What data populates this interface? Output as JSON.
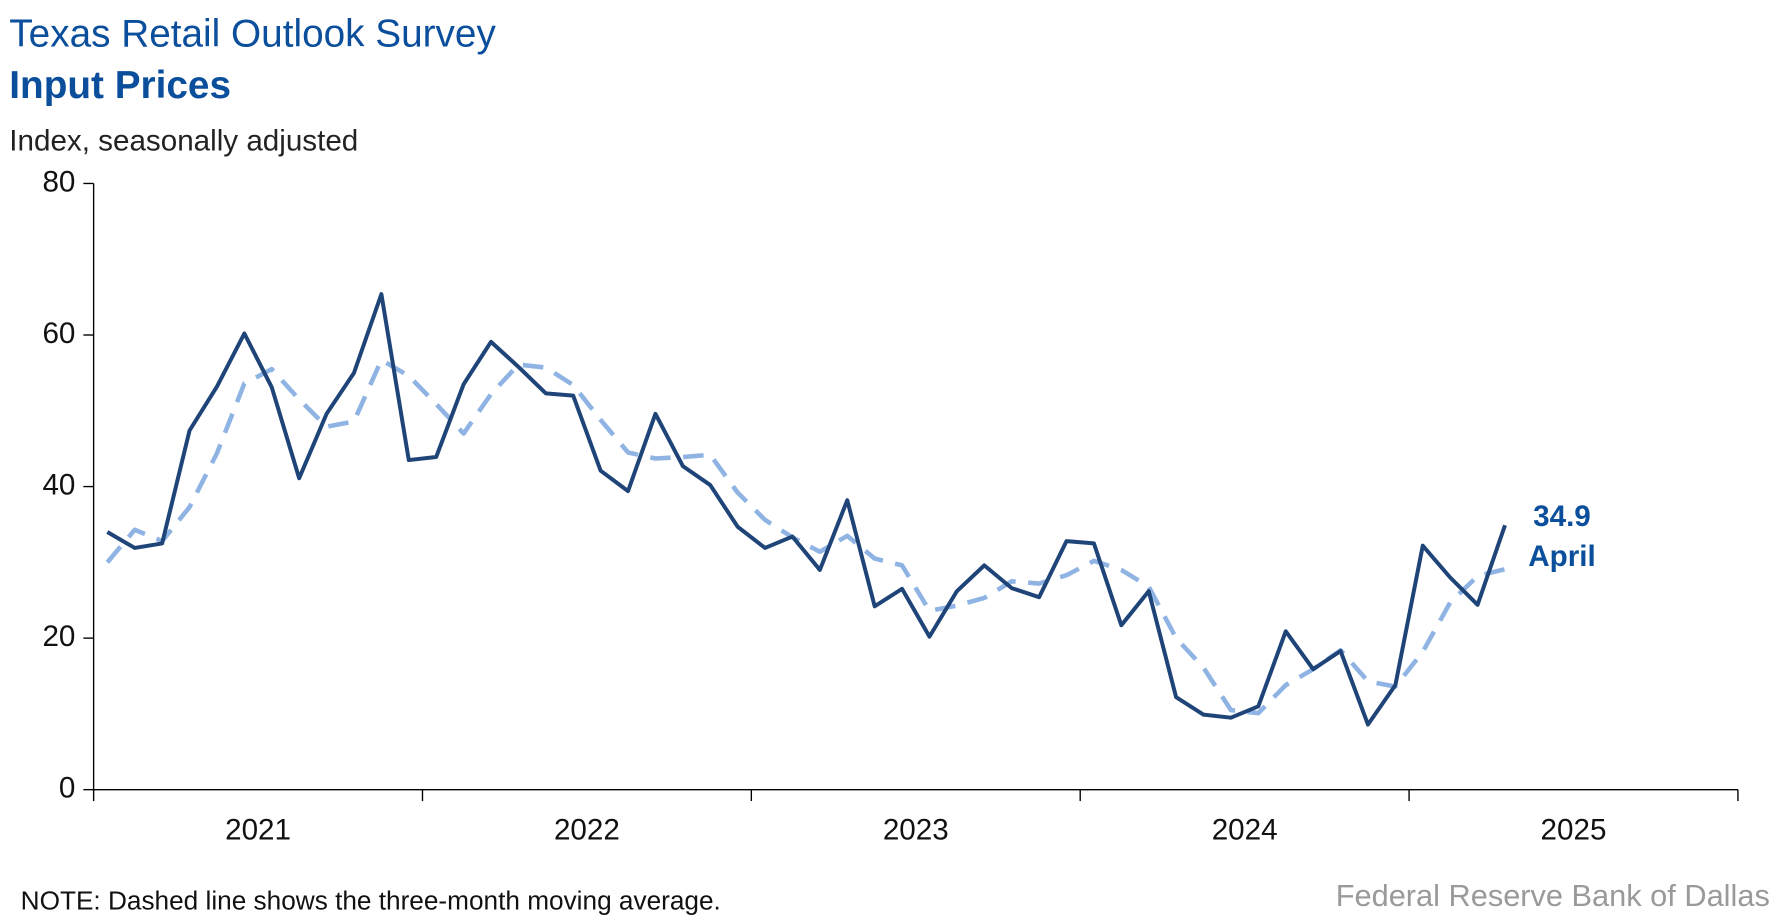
{
  "chart_data": {
    "type": "line",
    "title": "Texas Retail Outlook Survey",
    "subtitle": "Input Prices",
    "y_label": "Index, seasonally adjusted",
    "note": "NOTE: Dashed line shows the three-month moving average.",
    "source": "Federal Reserve Bank of Dallas",
    "annotation": {
      "value_text": "34.9",
      "month_text": "April"
    },
    "x": [
      "2021-01",
      "2021-02",
      "2021-03",
      "2021-04",
      "2021-05",
      "2021-06",
      "2021-07",
      "2021-08",
      "2021-09",
      "2021-10",
      "2021-11",
      "2021-12",
      "2022-01",
      "2022-02",
      "2022-03",
      "2022-04",
      "2022-05",
      "2022-06",
      "2022-07",
      "2022-08",
      "2022-09",
      "2022-10",
      "2022-11",
      "2022-12",
      "2023-01",
      "2023-02",
      "2023-03",
      "2023-04",
      "2023-05",
      "2023-06",
      "2023-07",
      "2023-08",
      "2023-09",
      "2023-10",
      "2023-11",
      "2023-12",
      "2024-01",
      "2024-02",
      "2024-03",
      "2024-04",
      "2024-05",
      "2024-06",
      "2024-07",
      "2024-08",
      "2024-09",
      "2024-10",
      "2024-11",
      "2024-12",
      "2025-01",
      "2025-02",
      "2025-03",
      "2025-04"
    ],
    "series": [
      {
        "color": "#8fb4e3",
        "dashed": true,
        "values": [
          30.0,
          34.3,
          32.8,
          37.3,
          44.4,
          53.6,
          55.5,
          51.5,
          47.9,
          48.6,
          56.7,
          54.6,
          50.9,
          47.0,
          52.2,
          56.1,
          55.7,
          53.4,
          48.8,
          44.5,
          43.7,
          43.9,
          44.2,
          39.2,
          35.6,
          33.3,
          31.4,
          33.5,
          30.5,
          29.6,
          23.6,
          24.3,
          25.3,
          27.5,
          27.2,
          28.3,
          30.2,
          29.0,
          26.8,
          20.0,
          16.1,
          10.5,
          10.1,
          13.8,
          15.9,
          18.4,
          14.3,
          13.6,
          18.2,
          24.7,
          28.2,
          29.1
        ]
      },
      {
        "color": "#1f4478",
        "dashed": false,
        "values": [
          34.0,
          31.9,
          32.5,
          47.4,
          53.2,
          60.2,
          53.1,
          41.1,
          49.6,
          55.0,
          65.4,
          43.5,
          43.9,
          53.5,
          59.1,
          55.8,
          52.3,
          52.0,
          42.1,
          39.4,
          49.6,
          42.7,
          40.2,
          34.7,
          31.9,
          33.4,
          29.0,
          38.2,
          24.2,
          26.5,
          20.2,
          26.2,
          29.6,
          26.6,
          25.4,
          32.8,
          32.5,
          21.7,
          26.2,
          12.2,
          9.9,
          9.5,
          11.0,
          20.9,
          15.9,
          18.3,
          8.6,
          13.8,
          32.2,
          28.0,
          24.4,
          34.9
        ]
      }
    ],
    "xlim": [
      "2021-01",
      "2025-12"
    ],
    "xticks": [
      2021,
      2022,
      2023,
      2024,
      2025
    ],
    "ylim": [
      0,
      80
    ],
    "yticks": [
      0,
      20,
      40,
      60,
      80
    ],
    "grid": false
  }
}
